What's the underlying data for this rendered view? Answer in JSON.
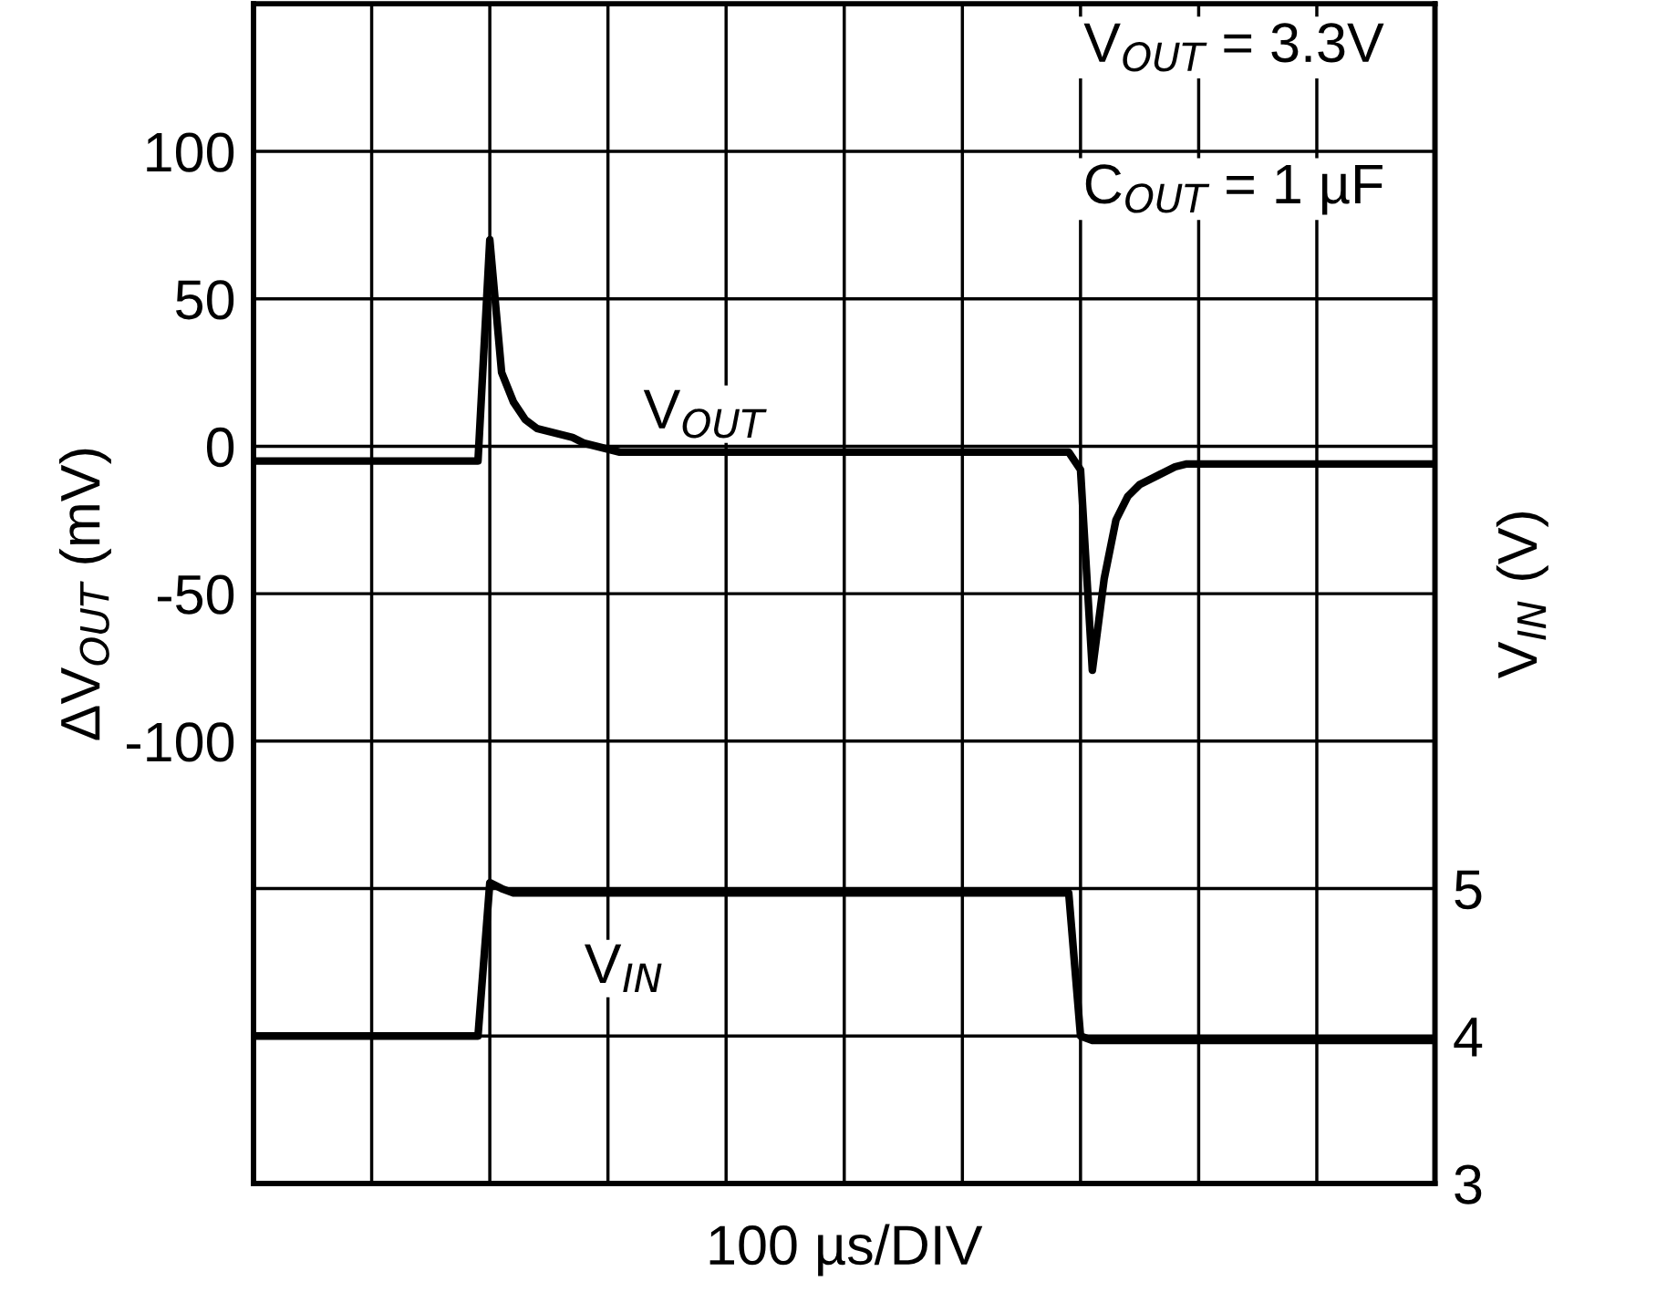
{
  "chart_data": {
    "type": "line",
    "xlabel": "100 µs/DIV",
    "ylabel": "ΔV$_{OUT}$ (mV)",
    "y2label": "V$_{IN}$ (V)",
    "categories": [
      null,
      null,
      null,
      null,
      null,
      null,
      null,
      null,
      null,
      null,
      null,
      null,
      null,
      null,
      null,
      null,
      null,
      null,
      null,
      null,
      null,
      null,
      null,
      null,
      null,
      null,
      null,
      null,
      null,
      null,
      null,
      null,
      null,
      null,
      null,
      null,
      null,
      null,
      null,
      null,
      null,
      null,
      null,
      null,
      null,
      null,
      null,
      null,
      null,
      null,
      null,
      null,
      null,
      null,
      null,
      null,
      null,
      null,
      null,
      null,
      null,
      null,
      null,
      null,
      null,
      null,
      null,
      null,
      null,
      null,
      null,
      null,
      null,
      null,
      null,
      null,
      null,
      null,
      null,
      null,
      null,
      null,
      null,
      null,
      null,
      null,
      null,
      null,
      null,
      null,
      null,
      null,
      null,
      null,
      null,
      null,
      null,
      null,
      null,
      null,
      null
    ],
    "ylim": [
      -250,
      150
    ],
    "yticks": [
      {
        "value": -200,
        "label": null
      },
      {
        "value": -150,
        "label": null
      },
      -100,
      -50,
      0,
      50,
      100,
      {
        "value": 150,
        "label": null
      }
    ],
    "y2lim": [
      3,
      11
    ],
    "y2ticks": [
      3,
      4,
      5
    ],
    "grid": true,
    "legend": false,
    "marker": "none",
    "line_style": "solid",
    "annotations": [
      "V$_{OUT}$ = 3.3V",
      "C$_{OUT}$ = 1 µF"
    ],
    "series": [
      {
        "name": "V$_{OUT}$",
        "color": "#000000",
        "values": [
          -5,
          -5,
          -5,
          -5,
          -5,
          -5,
          -5,
          -5,
          -5,
          -5,
          -5,
          -5,
          -5,
          -5,
          -5,
          -5,
          -5,
          -5,
          -5,
          -5,
          70,
          25,
          15,
          9,
          6,
          5,
          4,
          3,
          1,
          0,
          -1,
          -2,
          -2,
          -2,
          -2,
          -2,
          -2,
          -2,
          -2,
          -2,
          -2,
          -2,
          -2,
          -2,
          -2,
          -2,
          -2,
          -2,
          -2,
          -2,
          -2,
          -2,
          -2,
          -2,
          -2,
          -2,
          -2,
          -2,
          -2,
          -2,
          -2,
          -2,
          -2,
          -2,
          -2,
          -2,
          -2,
          -2,
          -2,
          -2,
          -8,
          -76,
          -45,
          -25,
          -17,
          -13,
          -11,
          -9,
          -7,
          -6,
          -6,
          -6,
          -6,
          -6,
          -6,
          -6,
          -6,
          -6,
          -6,
          -6,
          -6,
          -6,
          -6,
          -6,
          -6,
          -6,
          -6,
          -6,
          -6,
          -6,
          -6
        ]
      },
      {
        "name": "V$_{IN}$",
        "color": "#000000",
        "axis": "y2",
        "values": [
          4,
          4,
          4,
          4,
          4,
          4,
          4,
          4,
          4,
          4,
          4,
          4,
          4,
          4,
          4,
          4,
          4,
          4,
          4,
          4,
          5.04,
          5.0,
          4.97,
          4.97,
          4.97,
          4.97,
          4.97,
          4.97,
          4.97,
          4.97,
          4.97,
          4.97,
          4.97,
          4.97,
          4.97,
          4.97,
          4.97,
          4.97,
          4.97,
          4.97,
          4.97,
          4.97,
          4.97,
          4.97,
          4.97,
          4.97,
          4.97,
          4.97,
          4.97,
          4.97,
          4.97,
          4.97,
          4.97,
          4.97,
          4.97,
          4.97,
          4.97,
          4.97,
          4.97,
          4.97,
          4.97,
          4.97,
          4.97,
          4.97,
          4.97,
          4.97,
          4.97,
          4.97,
          4.97,
          4.97,
          4.0,
          3.97,
          3.97,
          3.97,
          3.97,
          3.97,
          3.97,
          3.97,
          3.97,
          3.97,
          3.97,
          3.97,
          3.97,
          3.97,
          3.97,
          3.97,
          3.97,
          3.97,
          3.97,
          3.97,
          3.97,
          3.97,
          3.97,
          3.97,
          3.97,
          3.97,
          3.97,
          3.97,
          3.97,
          3.97,
          3.97
        ]
      }
    ]
  }
}
